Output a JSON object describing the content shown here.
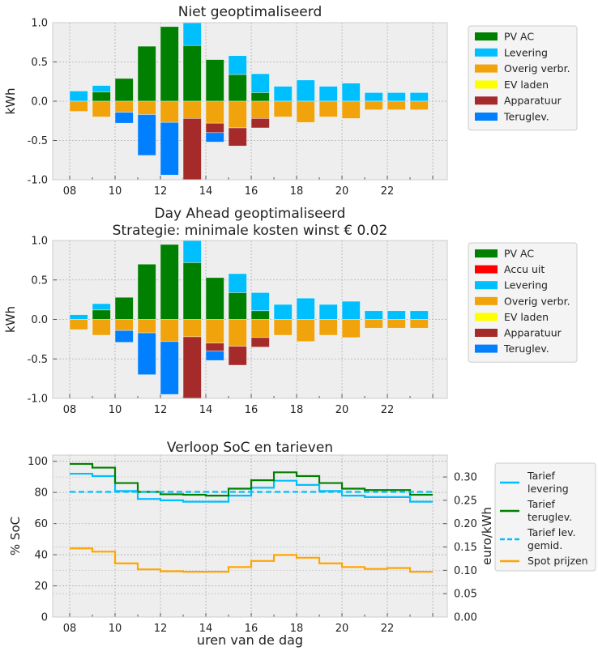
{
  "chart_data": [
    {
      "type": "bar",
      "stacked": true,
      "title": "Niet geoptimaliseerd",
      "xlabel": "",
      "ylabel": "kWh",
      "ylim": [
        -1.0,
        1.0
      ],
      "yticks": [
        "-1.0",
        "-0.5",
        "0.0",
        "0.5",
        "1.0"
      ],
      "x": [
        8,
        9,
        10,
        11,
        12,
        13,
        14,
        15,
        16,
        17,
        18,
        19,
        20,
        21,
        22,
        23
      ],
      "xticklabels": [
        "08",
        "10",
        "12",
        "14",
        "16",
        "18",
        "20",
        "22"
      ],
      "grid": true,
      "legend_position": "right",
      "series": [
        {
          "name": "PV AC",
          "color": "#008000",
          "values": [
            0,
            0.12,
            0.29,
            0.7,
            0.95,
            0.71,
            0.53,
            0.34,
            0.11,
            0,
            0,
            0,
            0,
            0,
            0,
            0
          ]
        },
        {
          "name": "Levering",
          "color": "#00bfff",
          "values": [
            0.13,
            0.08,
            0,
            0,
            0,
            0.35,
            0,
            0.24,
            0.24,
            0.19,
            0.27,
            0.19,
            0.23,
            0.11,
            0.11,
            0.11
          ]
        },
        {
          "name": "Overig verbr.",
          "color": "#f0a30a",
          "values": [
            -0.13,
            -0.2,
            -0.14,
            -0.17,
            -0.27,
            -0.22,
            -0.28,
            -0.34,
            -0.22,
            -0.2,
            -0.27,
            -0.2,
            -0.22,
            -0.11,
            -0.11,
            -0.11
          ]
        },
        {
          "name": "EV laden",
          "color": "#ffff00",
          "values": [
            0,
            0,
            0,
            0,
            0,
            0,
            0,
            0,
            0,
            0,
            0,
            0,
            0,
            0,
            0,
            0
          ]
        },
        {
          "name": "Apparatuur",
          "color": "#a52a2a",
          "values": [
            0,
            0,
            0,
            0,
            0,
            -0.84,
            -0.12,
            -0.23,
            -0.12,
            0,
            0,
            0,
            0,
            0,
            0,
            0
          ]
        },
        {
          "name": "Teruglev.",
          "color": "#0080ff",
          "values": [
            0,
            0,
            -0.14,
            -0.52,
            -0.67,
            0,
            -0.12,
            0,
            0,
            0,
            0,
            0,
            0,
            0,
            0,
            0
          ]
        }
      ]
    },
    {
      "type": "bar",
      "stacked": true,
      "title": "Day Ahead geoptimaliseerd",
      "subtitle": "Strategie: minimale kosten winst € 0.02",
      "xlabel": "",
      "ylabel": "kWh",
      "ylim": [
        -1.0,
        1.0
      ],
      "yticks": [
        "-1.0",
        "-0.5",
        "0.0",
        "0.5",
        "1.0"
      ],
      "x": [
        8,
        9,
        10,
        11,
        12,
        13,
        14,
        15,
        16,
        17,
        18,
        19,
        20,
        21,
        22,
        23
      ],
      "xticklabels": [
        "08",
        "10",
        "12",
        "14",
        "16",
        "18",
        "20",
        "22"
      ],
      "grid": true,
      "legend_position": "right",
      "series": [
        {
          "name": "PV AC",
          "color": "#008000",
          "values": [
            0,
            0.12,
            0.28,
            0.7,
            0.95,
            0.72,
            0.53,
            0.34,
            0.11,
            0,
            0,
            0,
            0,
            0,
            0,
            0
          ]
        },
        {
          "name": "Accu uit",
          "color": "#ff0000",
          "values": [
            0,
            0,
            0,
            0,
            0,
            0,
            0,
            0,
            0,
            0,
            0,
            0,
            0,
            0,
            0,
            0
          ]
        },
        {
          "name": "Levering",
          "color": "#00bfff",
          "values": [
            0.06,
            0.08,
            0,
            0,
            0,
            0.35,
            0,
            0.24,
            0.23,
            0.19,
            0.27,
            0.19,
            0.23,
            0.11,
            0.11,
            0.11
          ]
        },
        {
          "name": "Overig verbr.",
          "color": "#f0a30a",
          "values": [
            -0.13,
            -0.2,
            -0.14,
            -0.17,
            -0.28,
            -0.22,
            -0.3,
            -0.34,
            -0.23,
            -0.2,
            -0.28,
            -0.2,
            -0.23,
            -0.11,
            -0.11,
            -0.11
          ]
        },
        {
          "name": "EV laden",
          "color": "#ffff00",
          "values": [
            0,
            0,
            0,
            0,
            0,
            0,
            0,
            0,
            0,
            0,
            0,
            0,
            0,
            0,
            0,
            0
          ]
        },
        {
          "name": "Apparatuur",
          "color": "#a52a2a",
          "values": [
            0,
            0,
            0,
            0,
            0,
            -0.84,
            -0.1,
            -0.24,
            -0.12,
            0,
            0,
            0,
            0,
            0,
            0,
            0
          ]
        },
        {
          "name": "Teruglev.",
          "color": "#0080ff",
          "values": [
            0,
            0,
            -0.15,
            -0.53,
            -0.67,
            0,
            -0.12,
            0,
            0,
            0,
            0,
            0,
            0,
            0,
            0,
            0
          ]
        }
      ]
    },
    {
      "type": "line",
      "step": true,
      "title": "Verloop SoC en tarieven",
      "xlabel": "uren van de dag",
      "ylabel": "% SoC",
      "ylabel_right": "euro/kWh",
      "ylim": [
        0,
        104
      ],
      "ylim_right": [
        0,
        0.347
      ],
      "yticks": [
        "0",
        "20",
        "40",
        "60",
        "80",
        "100"
      ],
      "yticks_right": [
        "0.00",
        "0.05",
        "0.10",
        "0.15",
        "0.20",
        "0.25",
        "0.30"
      ],
      "x": [
        8,
        9,
        10,
        11,
        12,
        13,
        14,
        15,
        16,
        17,
        18,
        19,
        20,
        21,
        22,
        23
      ],
      "xticklabels": [
        "08",
        "10",
        "12",
        "14",
        "16",
        "18",
        "20",
        "22"
      ],
      "grid": true,
      "legend_position": "right",
      "series": [
        {
          "name": "Tarief\nlevering",
          "axis": "right",
          "color": "#00bfff",
          "style": "solid",
          "values": [
            0.307,
            0.302,
            0.27,
            0.253,
            0.25,
            0.247,
            0.247,
            0.26,
            0.277,
            0.292,
            0.283,
            0.27,
            0.26,
            0.257,
            0.257,
            0.247
          ]
        },
        {
          "name": "Tarief\nteruglev.",
          "axis": "right",
          "color": "#008000",
          "style": "solid",
          "values": [
            0.328,
            0.32,
            0.287,
            0.268,
            0.263,
            0.262,
            0.26,
            0.275,
            0.293,
            0.31,
            0.302,
            0.287,
            0.275,
            0.272,
            0.272,
            0.262
          ]
        },
        {
          "name": "Tarief lev.\ngemid.",
          "axis": "right",
          "color": "#00bfff",
          "style": "dashed",
          "values": [
            0.268,
            0.268,
            0.268,
            0.268,
            0.268,
            0.268,
            0.268,
            0.268,
            0.268,
            0.268,
            0.268,
            0.268,
            0.268,
            0.268,
            0.268,
            0.268
          ]
        },
        {
          "name": "Spot prijzen",
          "axis": "right",
          "color": "#ffa500",
          "style": "solid",
          "values": [
            0.147,
            0.14,
            0.115,
            0.102,
            0.098,
            0.097,
            0.097,
            0.107,
            0.12,
            0.133,
            0.127,
            0.115,
            0.107,
            0.103,
            0.105,
            0.097
          ]
        }
      ]
    }
  ]
}
